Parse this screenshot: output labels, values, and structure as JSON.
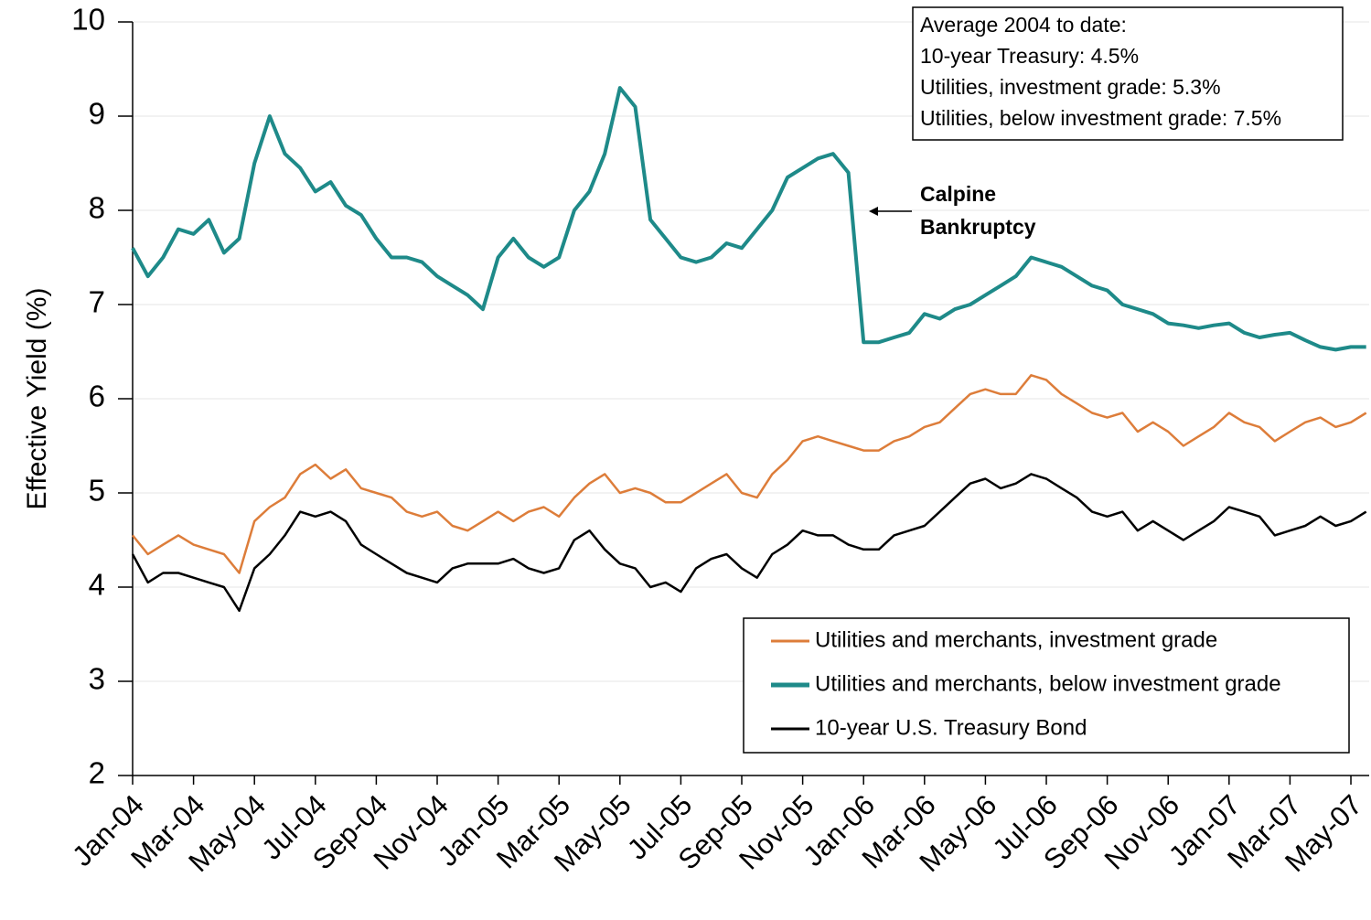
{
  "chart_data": {
    "type": "line",
    "ylabel": "Effective Yield (%)",
    "x": [
      0,
      0.5,
      1,
      1.5,
      2,
      2.5,
      3,
      3.5,
      4,
      4.5,
      5,
      5.5,
      6,
      6.5,
      7,
      7.5,
      8,
      8.5,
      9,
      9.5,
      10,
      10.5,
      11,
      11.5,
      12,
      12.5,
      13,
      13.5,
      14,
      14.5,
      15,
      15.5,
      16,
      16.5,
      17,
      17.5,
      18,
      18.5,
      19,
      19.5,
      20,
      20.5,
      21,
      21.5,
      22,
      22.5,
      23,
      23.5,
      24,
      24.5,
      25,
      25.5,
      26,
      26.5,
      27,
      27.5,
      28,
      28.5,
      29,
      29.5,
      30,
      30.5,
      31,
      31.5,
      32,
      32.5,
      33,
      33.5,
      34,
      34.5,
      35,
      35.5,
      36,
      36.5,
      37,
      37.5,
      38,
      38.5,
      39,
      39.5,
      40,
      40.5
    ],
    "xlim": [
      0,
      40.6
    ],
    "xticks": [
      {
        "value": 0,
        "label": "Jan-04"
      },
      {
        "value": 2,
        "label": "Mar-04"
      },
      {
        "value": 4,
        "label": "May-04"
      },
      {
        "value": 6,
        "label": "Jul-04"
      },
      {
        "value": 8,
        "label": "Sep-04"
      },
      {
        "value": 10,
        "label": "Nov-04"
      },
      {
        "value": 12,
        "label": "Jan-05"
      },
      {
        "value": 14,
        "label": "Mar-05"
      },
      {
        "value": 16,
        "label": "May-05"
      },
      {
        "value": 18,
        "label": "Jul-05"
      },
      {
        "value": 20,
        "label": "Sep-05"
      },
      {
        "value": 22,
        "label": "Nov-05"
      },
      {
        "value": 24,
        "label": "Jan-06"
      },
      {
        "value": 26,
        "label": "Mar-06"
      },
      {
        "value": 28,
        "label": "May-06"
      },
      {
        "value": 30,
        "label": "Jul-06"
      },
      {
        "value": 32,
        "label": "Sep-06"
      },
      {
        "value": 34,
        "label": "Nov-06"
      },
      {
        "value": 36,
        "label": "Jan-07"
      },
      {
        "value": 38,
        "label": "Mar-07"
      },
      {
        "value": 40,
        "label": "May-07"
      }
    ],
    "ylim": [
      2,
      10
    ],
    "yticks": [
      2,
      3,
      4,
      5,
      6,
      7,
      8,
      9,
      10
    ],
    "grid": true,
    "series": [
      {
        "name": "Utilities and merchants, investment grade",
        "color": "#dd7d3a",
        "values": [
          4.55,
          4.35,
          4.45,
          4.55,
          4.45,
          4.4,
          4.35,
          4.15,
          4.7,
          4.85,
          4.95,
          5.2,
          5.3,
          5.15,
          5.25,
          5.05,
          5.0,
          4.95,
          4.8,
          4.75,
          4.8,
          4.65,
          4.6,
          4.7,
          4.8,
          4.7,
          4.8,
          4.85,
          4.75,
          4.95,
          5.1,
          5.2,
          5.0,
          5.05,
          5.0,
          4.9,
          4.9,
          5.0,
          5.1,
          5.2,
          5.0,
          4.95,
          5.2,
          5.35,
          5.55,
          5.6,
          5.55,
          5.5,
          5.45,
          5.45,
          5.55,
          5.6,
          5.7,
          5.75,
          5.9,
          6.05,
          6.1,
          6.05,
          6.05,
          6.25,
          6.2,
          6.05,
          5.95,
          5.85,
          5.8,
          5.85,
          5.65,
          5.75,
          5.65,
          5.5,
          5.6,
          5.7,
          5.85,
          5.75,
          5.7,
          5.55,
          5.65,
          5.75,
          5.8,
          5.7,
          5.75,
          5.85
        ]
      },
      {
        "name": "Utilities and merchants, below investment grade",
        "color": "#1e8a89",
        "values": [
          7.6,
          7.3,
          7.5,
          7.8,
          7.75,
          7.9,
          7.55,
          7.7,
          8.5,
          9.0,
          8.6,
          8.45,
          8.2,
          8.3,
          8.05,
          7.95,
          7.7,
          7.5,
          7.5,
          7.45,
          7.3,
          7.2,
          7.1,
          6.95,
          7.5,
          7.7,
          7.5,
          7.4,
          7.5,
          8.0,
          8.2,
          8.6,
          9.3,
          9.1,
          7.9,
          7.7,
          7.5,
          7.45,
          7.5,
          7.65,
          7.6,
          7.8,
          8.0,
          8.35,
          8.45,
          8.55,
          8.6,
          8.4,
          6.6,
          6.6,
          6.65,
          6.7,
          6.9,
          6.85,
          6.95,
          7.0,
          7.1,
          7.2,
          7.3,
          7.5,
          7.45,
          7.4,
          7.3,
          7.2,
          7.15,
          7.0,
          6.95,
          6.9,
          6.8,
          6.78,
          6.75,
          6.78,
          6.8,
          6.7,
          6.65,
          6.68,
          6.7,
          6.62,
          6.55,
          6.52,
          6.55,
          6.55
        ]
      },
      {
        "name": "10-year U.S. Treasury Bond",
        "color": "#000000",
        "values": [
          4.35,
          4.05,
          4.15,
          4.15,
          4.1,
          4.05,
          4.0,
          3.75,
          4.2,
          4.35,
          4.55,
          4.8,
          4.75,
          4.8,
          4.7,
          4.45,
          4.35,
          4.25,
          4.15,
          4.1,
          4.05,
          4.2,
          4.25,
          4.25,
          4.25,
          4.3,
          4.2,
          4.15,
          4.2,
          4.5,
          4.6,
          4.4,
          4.25,
          4.2,
          4.0,
          4.05,
          3.95,
          4.2,
          4.3,
          4.35,
          4.2,
          4.1,
          4.35,
          4.45,
          4.6,
          4.55,
          4.55,
          4.45,
          4.4,
          4.4,
          4.55,
          4.6,
          4.65,
          4.8,
          4.95,
          5.1,
          5.15,
          5.05,
          5.1,
          5.2,
          5.15,
          5.05,
          4.95,
          4.8,
          4.75,
          4.8,
          4.6,
          4.7,
          4.6,
          4.5,
          4.6,
          4.7,
          4.85,
          4.8,
          4.75,
          4.55,
          4.6,
          4.65,
          4.75,
          4.65,
          4.7,
          4.8
        ]
      }
    ],
    "annotations": [
      {
        "lines": [
          "Average 2004 to date:",
          "10-year Treasury: 4.5%",
          "Utilities, investment grade: 5.3%",
          "Utilities, below investment grade: 7.5%"
        ]
      },
      {
        "lines": [
          "Calpine",
          "Bankruptcy"
        ]
      }
    ]
  }
}
